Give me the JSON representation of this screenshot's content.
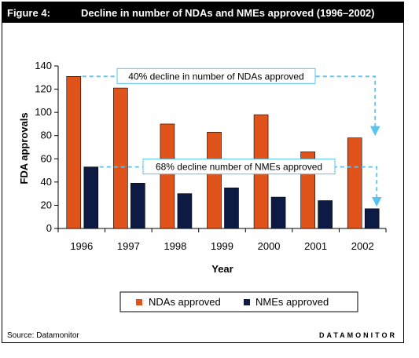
{
  "header": {
    "figure_label": "Figure 4:",
    "title": "Decline in number of NDAs and NMEs approved (1996–2002)"
  },
  "footer": {
    "source": "Source: Datamonitor",
    "brand": "DATAMONITOR"
  },
  "colors": {
    "ndas": "#e0541b",
    "nmes": "#0d1a44",
    "annotation": "#56c4ef"
  },
  "chart_data": {
    "type": "bar",
    "title": "",
    "xlabel": "Year",
    "ylabel": "FDA approvals",
    "ylim": [
      0,
      140
    ],
    "yticks": [
      0,
      20,
      40,
      60,
      80,
      100,
      120,
      140
    ],
    "categories": [
      "1996",
      "1997",
      "1998",
      "1999",
      "2000",
      "2001",
      "2002"
    ],
    "series": [
      {
        "name": "NDAs approved",
        "values": [
          131,
          121,
          90,
          83,
          98,
          66,
          78
        ]
      },
      {
        "name": "NMEs approved",
        "values": [
          53,
          39,
          30,
          35,
          27,
          24,
          17
        ]
      }
    ],
    "legend_position": "bottom",
    "grid": false,
    "annotations": [
      "40% decline in number of NDAs approved",
      "68% decline number of NMEs approved"
    ]
  }
}
